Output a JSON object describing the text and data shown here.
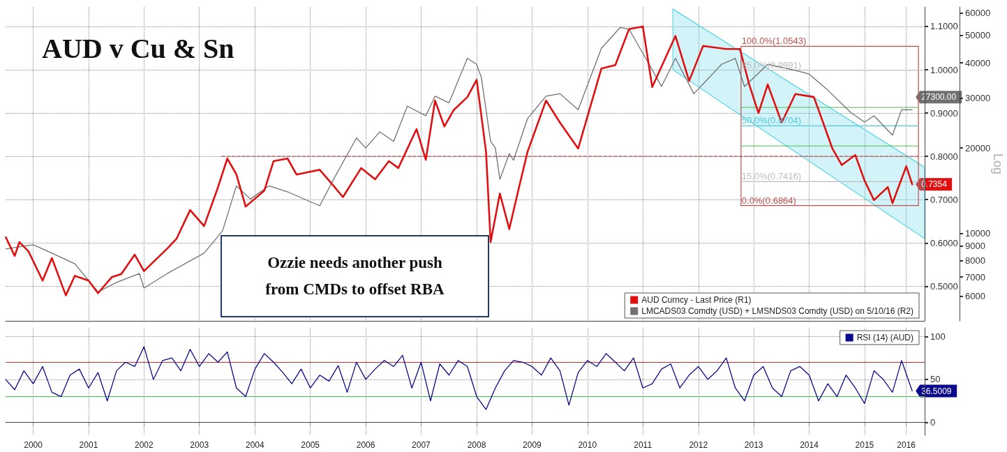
{
  "chart_data": [
    {
      "type": "line",
      "title": "AUD v Cu & Sn",
      "y2label": "Log",
      "xlim": [
        "2000-01-01",
        "2016-07-31"
      ],
      "xticks": [
        {
          "value": "2000-07-01",
          "label": null
        },
        {
          "value": "2001-07-01",
          "label": null
        },
        {
          "value": "2002-07-01",
          "label": null
        },
        {
          "value": "2003-07-01",
          "label": null
        },
        {
          "value": "2004-07-01",
          "label": null
        },
        {
          "value": "2005-07-01",
          "label": null
        },
        {
          "value": "2006-07-01",
          "label": null
        },
        {
          "value": "2007-07-01",
          "label": null
        },
        {
          "value": "2008-07-01",
          "label": null
        },
        {
          "value": "2009-07-01",
          "label": null
        },
        {
          "value": "2010-07-01",
          "label": null
        },
        {
          "value": "2011-07-01",
          "label": null
        },
        {
          "value": "2012-07-01",
          "label": null
        },
        {
          "value": "2013-07-01",
          "label": null
        },
        {
          "value": "2014-07-01",
          "label": null
        },
        {
          "value": "2015-07-01",
          "label": null
        },
        {
          "value": "2016-04-01",
          "label": null
        }
      ],
      "ylim": [
        0.42,
        1.145
      ],
      "yticks": [
        {
          "value": 0.5,
          "label": "0.5000"
        },
        {
          "value": 0.6,
          "label": "0.6000"
        },
        {
          "value": 0.7,
          "label": "0.7000"
        },
        {
          "value": 0.8,
          "label": "0.8000"
        },
        {
          "value": 0.9,
          "label": "0.9000"
        },
        {
          "value": 1.0,
          "label": "1.0000"
        },
        {
          "value": 1.1,
          "label": "1.1000"
        }
      ],
      "y2lim": [
        4900,
        63000
      ],
      "y2ticks": [
        6000,
        7000,
        8000,
        9000,
        10000,
        20000,
        30000,
        40000,
        50000,
        60000
      ],
      "log": "y2",
      "grid": true,
      "legend": "bottom right",
      "tick_labels": "y",
      "marker": "none",
      "series": [
        {
          "name": "AUD Curncy - Last Price (R1)",
          "color": "#e01010",
          "x": [
            "2000-01-03",
            "2000-03",
            "2000-04",
            "2000-06",
            "2000-09",
            "2000-11",
            "2001-02",
            "2001-04",
            "2001-07",
            "2001-09",
            "2001-12",
            "2002-02",
            "2002-05",
            "2002-07",
            "2002-12",
            "2003-02",
            "2003-05",
            "2003-08",
            "2003-11",
            "2004-01",
            "2004-03",
            "2004-05",
            "2004-09",
            "2004-11",
            "2005-02",
            "2005-04",
            "2005-09",
            "2005-12",
            "2006-02",
            "2006-06",
            "2006-09",
            "2006-12",
            "2007-02",
            "2007-06",
            "2007-08",
            "2007-10",
            "2007-12",
            "2008-02",
            "2008-05",
            "2008-07",
            "2008-09",
            "2008-10",
            "2008-12",
            "2009-02",
            "2009-04",
            "2009-06",
            "2009-10",
            "2010-01",
            "2010-05",
            "2010-07",
            "2010-10",
            "2011-01",
            "2011-04",
            "2011-07",
            "2011-09",
            "2012-02",
            "2012-05",
            "2012-08",
            "2013-01",
            "2013-04",
            "2013-06",
            "2013-08",
            "2013-10",
            "2014-01",
            "2014-04",
            "2014-08",
            "2014-10",
            "2014-12",
            "2015-02",
            "2015-05",
            "2015-07",
            "2015-09",
            "2015-12",
            "2016-01",
            "2016-04",
            "2016-05-10"
          ],
          "values": [
            0.613,
            0.57,
            0.602,
            0.58,
            0.513,
            0.565,
            0.479,
            0.524,
            0.513,
            0.484,
            0.521,
            0.528,
            0.573,
            0.535,
            0.587,
            0.61,
            0.676,
            0.639,
            0.729,
            0.795,
            0.758,
            0.684,
            0.721,
            0.789,
            0.795,
            0.758,
            0.769,
            0.732,
            0.706,
            0.773,
            0.747,
            0.789,
            0.773,
            0.863,
            0.792,
            0.929,
            0.869,
            0.907,
            0.937,
            0.977,
            0.81,
            0.602,
            0.714,
            0.632,
            0.721,
            0.81,
            0.929,
            0.878,
            0.818,
            0.892,
            1.003,
            1.011,
            1.094,
            1.1,
            0.96,
            1.078,
            0.974,
            1.055,
            1.048,
            1.048,
            0.966,
            0.9,
            0.966,
            0.878,
            0.944,
            0.937,
            0.878,
            0.818,
            0.78,
            0.803,
            0.744,
            0.699,
            0.729,
            0.692,
            0.777,
            0.7354
          ],
          "value_labels": [
            null,
            null,
            null,
            null,
            null,
            null,
            null,
            null,
            null,
            null,
            null,
            null,
            null,
            null,
            null,
            null,
            null,
            null,
            null,
            null,
            null,
            null,
            null,
            null,
            null,
            null,
            null,
            null,
            null,
            null,
            null,
            null,
            null,
            null,
            null,
            null,
            null,
            null,
            null,
            null,
            null,
            null,
            null,
            null,
            null,
            null,
            null,
            null,
            null,
            null,
            null,
            null,
            null,
            null,
            null,
            null,
            null,
            null,
            null,
            null,
            null,
            null,
            null,
            null,
            null,
            null,
            null,
            null,
            null,
            null,
            null,
            null,
            null,
            null,
            null,
            "0.7354"
          ]
        },
        {
          "name": "LMCADS03 Comdty (USD) + LMSNDS03 Comdty (USD) on 5/10/16 (R2)",
          "color": "#707070",
          "axis": "y2",
          "x": [
            "2000-01-03",
            "2000-07",
            "2000-11",
            "2001-04",
            "2001-09",
            "2002-01",
            "2002-06",
            "2002-07",
            "2002-12",
            "2003-08",
            "2003-12",
            "2004-03",
            "2004-06",
            "2004-10",
            "2005-02",
            "2005-09",
            "2005-12",
            "2006-05",
            "2006-07",
            "2006-10",
            "2007-01",
            "2007-04",
            "2007-08",
            "2007-10",
            "2008-01",
            "2008-05",
            "2008-07",
            "2008-08",
            "2008-10",
            "2008-11",
            "2008-12",
            "2009-02",
            "2009-03",
            "2009-06",
            "2009-10",
            "2010-01",
            "2010-05",
            "2010-10",
            "2011-02",
            "2011-04",
            "2011-08",
            "2011-11",
            "2012-02",
            "2012-06",
            "2012-12",
            "2013-03",
            "2013-05",
            "2013-10",
            "2014-04",
            "2014-07",
            "2014-11",
            "2015-04",
            "2015-07",
            "2015-09",
            "2016-01",
            "2016-03",
            "2016-05-10"
          ],
          "values": [
            8800,
            9100,
            8500,
            7800,
            6200,
            6700,
            7200,
            6400,
            7200,
            8500,
            10200,
            14700,
            13200,
            14700,
            14000,
            12500,
            15500,
            21700,
            20000,
            22800,
            21100,
            28100,
            26000,
            30500,
            28900,
            41500,
            39500,
            35500,
            21100,
            20000,
            15500,
            19100,
            18100,
            25400,
            30500,
            31100,
            27300,
            45000,
            53300,
            52600,
            40400,
            33000,
            41500,
            31100,
            39500,
            41500,
            33000,
            39500,
            37600,
            36500,
            32000,
            26700,
            24700,
            26000,
            22200,
            27300,
            27300
          ],
          "value_labels": [
            null,
            null,
            null,
            null,
            null,
            null,
            null,
            null,
            null,
            null,
            null,
            null,
            null,
            null,
            null,
            null,
            null,
            null,
            null,
            null,
            null,
            null,
            null,
            null,
            null,
            null,
            null,
            null,
            null,
            null,
            null,
            null,
            null,
            null,
            null,
            null,
            null,
            null,
            null,
            null,
            null,
            null,
            null,
            null,
            null,
            null,
            null,
            null,
            null,
            null,
            null,
            null,
            null,
            null,
            null,
            null,
            "27300.00"
          ]
        },
        {
          "color": "#5fd6e6",
          "x": [
            "2012-01-15",
            "2016-07-31"
          ],
          "values": [
            1.14,
            0.775
          ],
          "upper": [
            1.14,
            0.775
          ],
          "lower": [
            1.0,
            0.61
          ]
        },
        {
          "color": "#c0504d",
          "line_style": "dashed",
          "x": [
            "2003-11-25",
            "2016-06-20"
          ],
          "values": [
            0.8,
            0.8
          ]
        },
        {
          "color": "#c0504d",
          "x": [
            "2013-04-08",
            "2016-06-20"
          ],
          "values": [
            1.0543,
            1.0543
          ]
        },
        {
          "color": "#c0504d",
          "x": [
            "2013-04-08",
            "2016-06-20"
          ],
          "values": [
            0.6864,
            0.6864
          ]
        },
        {
          "color": "#c0504d",
          "x": [
            "2013-04-08",
            "2013-04-08"
          ],
          "values": [
            0.6864,
            1.0543
          ]
        },
        {
          "color": "#c0504d",
          "x": [
            "2016-06-20",
            "2016-06-20"
          ],
          "values": [
            0.6864,
            1.0543
          ]
        },
        {
          "color": "#bdbdbd",
          "x": [
            "2013-04-08",
            "2016-06-20"
          ],
          "values": [
            0.9991,
            0.9991
          ]
        },
        {
          "color": "#4fc9de",
          "x": [
            "2013-04-08",
            "2016-06-20"
          ],
          "values": [
            0.8704,
            0.8704
          ]
        },
        {
          "color": "#bdbdbd",
          "x": [
            "2013-04-08",
            "2016-06-20"
          ],
          "values": [
            0.7416,
            0.7416
          ]
        },
        {
          "color": "#4cc04c",
          "x": [
            "2013-04-08",
            "2016-06-20"
          ],
          "values": [
            0.913,
            0.913
          ]
        },
        {
          "color": "#4cc04c",
          "x": [
            "2013-04-08",
            "2016-06-20"
          ],
          "values": [
            0.824,
            0.824
          ]
        }
      ],
      "annotations": [
        {
          "text": "100.0%(1.0543)",
          "x": "2013-04-08",
          "y": 1.0543
        },
        {
          "text": "85.0%(0.9991)",
          "x": "2013-04-08",
          "y": 0.9991
        },
        {
          "text": "50.0%(0.8704)",
          "x": "2013-04-08",
          "y": 0.8704
        },
        {
          "text": "15.0%(0.7416)",
          "x": "2013-04-08",
          "y": 0.7416
        },
        {
          "text": "0.0%(0.6864)",
          "x": "2013-04-08",
          "y": 0.6864
        },
        "Ozzie needs another push from CMDs to offset RBA"
      ]
    },
    {
      "type": "line",
      "xlim": [
        "2000-01-01",
        "2016-07-31"
      ],
      "xticks": [
        {
          "value": "2000-07-01",
          "label": "2000"
        },
        {
          "value": "2001-07-01",
          "label": "2001"
        },
        {
          "value": "2002-07-01",
          "label": "2002"
        },
        {
          "value": "2003-07-01",
          "label": "2003"
        },
        {
          "value": "2004-07-01",
          "label": "2004"
        },
        {
          "value": "2005-07-01",
          "label": "2005"
        },
        {
          "value": "2006-07-01",
          "label": "2006"
        },
        {
          "value": "2007-07-01",
          "label": "2007"
        },
        {
          "value": "2008-07-01",
          "label": "2008"
        },
        {
          "value": "2009-07-01",
          "label": "2009"
        },
        {
          "value": "2010-07-01",
          "label": "2010"
        },
        {
          "value": "2011-07-01",
          "label": "2011"
        },
        {
          "value": "2012-07-01",
          "label": "2012"
        },
        {
          "value": "2013-07-01",
          "label": "2013"
        },
        {
          "value": "2014-07-01",
          "label": "2014"
        },
        {
          "value": "2015-07-01",
          "label": "2015"
        },
        {
          "value": "2016-04-01",
          "label": "2016"
        }
      ],
      "ylim": [
        -15,
        110
      ],
      "yticks": [
        0,
        50,
        100
      ],
      "grid": true,
      "legend": "top right",
      "marker": "none",
      "ref_lines": [
        {
          "axis": "y",
          "value": 70,
          "color": "#c03030"
        },
        {
          "axis": "y",
          "value": 30,
          "color": "#40c040"
        }
      ],
      "series": [
        {
          "name": "RSI (14) (AUD)",
          "color": "#0a0a8c",
          "x": [
            "2000-01",
            "2000-03",
            "2000-05",
            "2000-07",
            "2000-09",
            "2000-11",
            "2001-01",
            "2001-03",
            "2001-05",
            "2001-07",
            "2001-09",
            "2001-11",
            "2002-01",
            "2002-03",
            "2002-05",
            "2002-07",
            "2002-09",
            "2002-11",
            "2003-01",
            "2003-03",
            "2003-05",
            "2003-07",
            "2003-09",
            "2003-11",
            "2004-01",
            "2004-03",
            "2004-05",
            "2004-07",
            "2004-09",
            "2004-11",
            "2005-01",
            "2005-03",
            "2005-05",
            "2005-07",
            "2005-09",
            "2005-11",
            "2006-01",
            "2006-03",
            "2006-05",
            "2006-07",
            "2006-09",
            "2006-11",
            "2007-01",
            "2007-03",
            "2007-05",
            "2007-07",
            "2007-09",
            "2007-11",
            "2008-01",
            "2008-03",
            "2008-05",
            "2008-07",
            "2008-09",
            "2008-11",
            "2009-01",
            "2009-03",
            "2009-05",
            "2009-07",
            "2009-09",
            "2009-11",
            "2010-01",
            "2010-03",
            "2010-05",
            "2010-07",
            "2010-09",
            "2010-11",
            "2011-01",
            "2011-03",
            "2011-05",
            "2011-07",
            "2011-09",
            "2011-11",
            "2012-01",
            "2012-03",
            "2012-05",
            "2012-07",
            "2012-09",
            "2012-11",
            "2013-01",
            "2013-03",
            "2013-05",
            "2013-07",
            "2013-09",
            "2013-11",
            "2014-01",
            "2014-03",
            "2014-05",
            "2014-07",
            "2014-09",
            "2014-11",
            "2015-01",
            "2015-03",
            "2015-05",
            "2015-07",
            "2015-09",
            "2015-11",
            "2016-01",
            "2016-03",
            "2016-05-10"
          ],
          "values": [
            50,
            38,
            60,
            45,
            65,
            35,
            30,
            55,
            62,
            40,
            58,
            25,
            60,
            70,
            65,
            88,
            50,
            72,
            75,
            60,
            85,
            65,
            80,
            70,
            82,
            40,
            30,
            62,
            80,
            70,
            58,
            45,
            62,
            40,
            55,
            48,
            66,
            35,
            70,
            50,
            62,
            72,
            65,
            78,
            40,
            70,
            25,
            68,
            55,
            72,
            65,
            30,
            15,
            40,
            60,
            72,
            70,
            65,
            55,
            75,
            60,
            20,
            58,
            72,
            65,
            80,
            70,
            60,
            75,
            40,
            45,
            62,
            68,
            40,
            55,
            65,
            50,
            60,
            75,
            40,
            25,
            55,
            65,
            40,
            30,
            60,
            65,
            55,
            25,
            45,
            30,
            55,
            40,
            22,
            60,
            50,
            35,
            72,
            36.5009
          ],
          "value_labels": [
            null,
            null,
            null,
            null,
            null,
            null,
            null,
            null,
            null,
            null,
            null,
            null,
            null,
            null,
            null,
            null,
            null,
            null,
            null,
            null,
            null,
            null,
            null,
            null,
            null,
            null,
            null,
            null,
            null,
            null,
            null,
            null,
            null,
            null,
            null,
            null,
            null,
            null,
            null,
            null,
            null,
            null,
            null,
            null,
            null,
            null,
            null,
            null,
            null,
            null,
            null,
            null,
            null,
            null,
            null,
            null,
            null,
            null,
            null,
            null,
            null,
            null,
            null,
            null,
            null,
            null,
            null,
            null,
            null,
            null,
            null,
            null,
            null,
            null,
            null,
            null,
            null,
            null,
            null,
            null,
            null,
            null,
            null,
            null,
            null,
            null,
            null,
            null,
            null,
            null,
            null,
            null,
            null,
            null,
            null,
            null,
            null,
            null,
            "36.5009"
          ]
        }
      ]
    }
  ]
}
